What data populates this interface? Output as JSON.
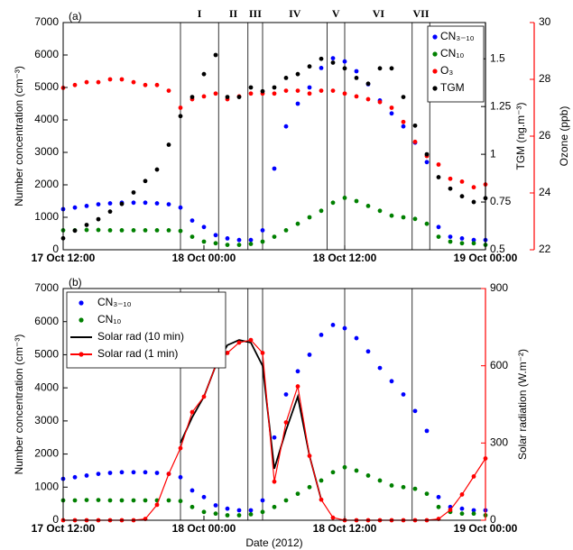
{
  "chart_data": [
    {
      "type": "line",
      "label": "(a)",
      "ylabel": "Number concentration (cm⁻³)",
      "y2label": "TGM (ng.m⁻³)",
      "y3label": "Ozone (ppb)",
      "y3_color": "#ff0000",
      "x": [
        "17 Oct 12:00",
        "17 Oct 13:00",
        "17 Oct 14:00",
        "17 Oct 15:00",
        "17 Oct 16:00",
        "17 Oct 17:00",
        "17 Oct 18:00",
        "17 Oct 19:00",
        "17 Oct 20:00",
        "17 Oct 21:00",
        "17 Oct 22:00",
        "17 Oct 23:00",
        "18 Oct 00:00",
        "18 Oct 01:00",
        "18 Oct 02:00",
        "18 Oct 03:00",
        "18 Oct 04:00",
        "18 Oct 05:00",
        "18 Oct 06:00",
        "18 Oct 07:00",
        "18 Oct 08:00",
        "18 Oct 09:00",
        "18 Oct 10:00",
        "18 Oct 11:00",
        "18 Oct 12:00",
        "18 Oct 13:00",
        "18 Oct 14:00",
        "18 Oct 15:00",
        "18 Oct 16:00",
        "18 Oct 17:00",
        "18 Oct 18:00",
        "18 Oct 19:00",
        "18 Oct 20:00",
        "18 Oct 21:00",
        "18 Oct 22:00",
        "18 Oct 23:00",
        "19 Oct 00:00"
      ],
      "xlim": [
        "17 Oct 12:00",
        "19 Oct 00:00"
      ],
      "xticks": [
        "17 Oct 12:00",
        "18 Oct 00:00",
        "18 Oct 12:00",
        "19 Oct 00:00"
      ],
      "ylim": [
        0,
        7000
      ],
      "yticks": [
        0,
        1000,
        2000,
        3000,
        4000,
        5000,
        6000,
        7000
      ],
      "y2lim": [
        0.5,
        1.69
      ],
      "y2ticks": [
        0.5,
        0.75,
        1,
        1.25,
        1.5
      ],
      "y3lim": [
        22,
        30
      ],
      "y3ticks": [
        22,
        24,
        26,
        28,
        30
      ],
      "legend": "upper right",
      "periods": {
        "labels": [
          "I",
          "II",
          "III",
          "IV",
          "V",
          "VI",
          "VII"
        ],
        "boundaries": [
          "17 Oct 22:00",
          "18 Oct 01:15",
          "18 Oct 03:45",
          "18 Oct 05:00",
          "18 Oct 10:30",
          "18 Oct 12:00",
          "18 Oct 17:45",
          "18 Oct 19:15"
        ]
      },
      "series": [
        {
          "name": "CN₃₋₁₀",
          "color": "#0000ff",
          "style": "markers",
          "values": [
            1250,
            1300,
            1350,
            1400,
            1430,
            1450,
            1450,
            1450,
            1430,
            1400,
            1300,
            900,
            700,
            450,
            350,
            300,
            300,
            600,
            2500,
            3800,
            4500,
            5000,
            5600,
            5900,
            5800,
            5500,
            5100,
            4600,
            4200,
            3800,
            3300,
            2700,
            700,
            400,
            350,
            300,
            300
          ]
        },
        {
          "name": "CN₁₀",
          "color": "#008000",
          "style": "markers",
          "values": [
            600,
            600,
            610,
            610,
            600,
            600,
            600,
            600,
            600,
            600,
            580,
            400,
            250,
            200,
            150,
            150,
            180,
            250,
            400,
            600,
            800,
            1000,
            1200,
            1450,
            1600,
            1500,
            1350,
            1200,
            1050,
            1000,
            950,
            800,
            400,
            250,
            200,
            200,
            150
          ]
        },
        {
          "name": "O₃",
          "color": "#ff0000",
          "style": "markers",
          "axis": "y3",
          "values": [
            27.7,
            27.8,
            27.9,
            27.9,
            28.0,
            28.0,
            27.9,
            27.8,
            27.8,
            27.6,
            27.0,
            27.3,
            27.4,
            27.5,
            27.3,
            27.4,
            27.5,
            27.5,
            27.5,
            27.6,
            27.6,
            27.5,
            27.6,
            27.6,
            27.5,
            27.4,
            27.3,
            27.2,
            27.0,
            26.5,
            25.8,
            25.3,
            25.0,
            24.5,
            24.4,
            24.2,
            24.3
          ]
        },
        {
          "name": "TGM",
          "color": "#000000",
          "style": "markers",
          "axis": "y2",
          "values": [
            0.56,
            0.6,
            0.63,
            0.66,
            0.7,
            0.74,
            0.8,
            0.86,
            0.92,
            1.05,
            1.2,
            1.3,
            1.42,
            1.52,
            1.3,
            1.3,
            1.35,
            1.33,
            1.35,
            1.4,
            1.42,
            1.46,
            1.5,
            1.48,
            1.45,
            1.4,
            1.37,
            1.45,
            1.45,
            1.3,
            1.15,
            1.0,
            0.88,
            0.82,
            0.78,
            0.75,
            0.77
          ]
        }
      ]
    },
    {
      "type": "line",
      "label": "(b)",
      "xlabel": "Date (2012)",
      "ylabel": "Number concentration (cm⁻³)",
      "y2label": "Solar radiation (W.m⁻²)",
      "y2_color": "#ff0000",
      "x": [
        "17 Oct 12:00",
        "17 Oct 13:00",
        "17 Oct 14:00",
        "17 Oct 15:00",
        "17 Oct 16:00",
        "17 Oct 17:00",
        "17 Oct 18:00",
        "17 Oct 19:00",
        "17 Oct 20:00",
        "17 Oct 21:00",
        "17 Oct 22:00",
        "17 Oct 23:00",
        "18 Oct 00:00",
        "18 Oct 01:00",
        "18 Oct 02:00",
        "18 Oct 03:00",
        "18 Oct 04:00",
        "18 Oct 05:00",
        "18 Oct 06:00",
        "18 Oct 07:00",
        "18 Oct 08:00",
        "18 Oct 09:00",
        "18 Oct 10:00",
        "18 Oct 11:00",
        "18 Oct 12:00",
        "18 Oct 13:00",
        "18 Oct 14:00",
        "18 Oct 15:00",
        "18 Oct 16:00",
        "18 Oct 17:00",
        "18 Oct 18:00",
        "18 Oct 19:00",
        "18 Oct 20:00",
        "18 Oct 21:00",
        "18 Oct 22:00",
        "18 Oct 23:00",
        "19 Oct 00:00"
      ],
      "xlim": [
        "17 Oct 12:00",
        "19 Oct 00:00"
      ],
      "xticks": [
        "17 Oct 12:00",
        "18 Oct 00:00",
        "18 Oct 12:00",
        "19 Oct 00:00"
      ],
      "ylim": [
        0,
        7000
      ],
      "yticks": [
        0,
        1000,
        2000,
        3000,
        4000,
        5000,
        6000,
        7000
      ],
      "y2lim": [
        0,
        900
      ],
      "y2ticks": [
        0,
        300,
        600,
        900
      ],
      "legend": "upper left",
      "periods": {
        "boundaries": [
          "17 Oct 22:00",
          "18 Oct 01:15",
          "18 Oct 03:45",
          "18 Oct 05:00",
          "18 Oct 12:00",
          "18 Oct 17:45"
        ]
      },
      "series": [
        {
          "name": "CN₃₋₁₀",
          "color": "#0000ff",
          "style": "markers",
          "values": [
            1250,
            1300,
            1350,
            1400,
            1430,
            1450,
            1450,
            1450,
            1430,
            1400,
            1300,
            900,
            700,
            450,
            350,
            300,
            300,
            600,
            2500,
            3800,
            4500,
            5000,
            5600,
            5900,
            5800,
            5500,
            5100,
            4600,
            4200,
            3800,
            3300,
            2700,
            700,
            400,
            350,
            300,
            300
          ]
        },
        {
          "name": "CN₁₀",
          "color": "#008000",
          "style": "markers",
          "values": [
            600,
            600,
            610,
            610,
            600,
            600,
            600,
            600,
            600,
            600,
            580,
            400,
            250,
            200,
            150,
            150,
            180,
            250,
            400,
            600,
            800,
            1000,
            1200,
            1450,
            1600,
            1500,
            1350,
            1200,
            1050,
            1000,
            950,
            800,
            400,
            250,
            200,
            200,
            150
          ]
        },
        {
          "name": "Solar rad (10 min)",
          "color": "#000000",
          "style": "line",
          "axis": "y2",
          "values": [
            null,
            null,
            null,
            null,
            null,
            null,
            null,
            null,
            null,
            null,
            300,
            400,
            480,
            600,
            680,
            700,
            690,
            600,
            200,
            350,
            480,
            250,
            80,
            null,
            null,
            null,
            null,
            null,
            null,
            null,
            null,
            null,
            null,
            null,
            null,
            null,
            null
          ]
        },
        {
          "name": "Solar rad (1 min)",
          "color": "#ff0000",
          "style": "both",
          "axis": "y2",
          "values": [
            0,
            0,
            0,
            0,
            0,
            0,
            0,
            5,
            60,
            180,
            280,
            420,
            480,
            600,
            650,
            690,
            700,
            650,
            150,
            380,
            520,
            250,
            80,
            10,
            0,
            0,
            0,
            0,
            0,
            0,
            0,
            0,
            5,
            40,
            100,
            170,
            240
          ]
        }
      ]
    }
  ]
}
